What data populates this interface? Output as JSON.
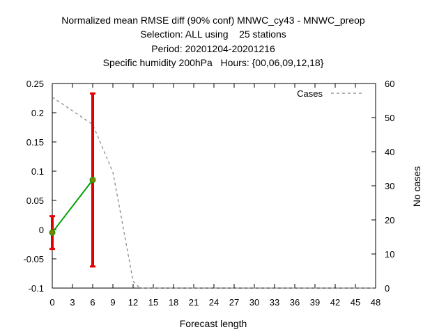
{
  "chart_data": {
    "type": "line",
    "title_lines": [
      "Normalized mean RMSE diff (90% conf) MNWC_cy43 - MNWC_preop",
      "Selection: ALL using    25 stations",
      "Period: 20201204-20201216",
      "Specific humidity 200hPa   Hours: {00,06,09,12,18}"
    ],
    "xlabel": "Forecast length",
    "ylabel": "",
    "y2label": "No cases",
    "xlim": [
      0,
      48
    ],
    "ylim": [
      -0.1,
      0.25
    ],
    "y2lim": [
      0,
      60
    ],
    "x_ticks": [
      0,
      3,
      6,
      9,
      12,
      15,
      18,
      21,
      24,
      27,
      30,
      33,
      36,
      39,
      42,
      45,
      48
    ],
    "y_ticks": [
      "-0.1",
      "-0.05",
      "0",
      "0.05",
      "0.1",
      "0.15",
      "0.2",
      "0.25"
    ],
    "y2_ticks": [
      0,
      10,
      20,
      30,
      40,
      50,
      60
    ],
    "grid": false,
    "legend_position": "top-right",
    "series": [
      {
        "axis": "y",
        "color": "#00a000",
        "points": [
          {
            "x": 0,
            "y": -0.005,
            "low": -0.033,
            "high": 0.023
          },
          {
            "x": 6,
            "y": 0.085,
            "low": -0.063,
            "high": 0.233
          }
        ]
      },
      {
        "name": "Cases",
        "axis": "y2",
        "style": "dashed",
        "color": "#808080",
        "x": [
          0,
          3,
          6,
          9,
          12,
          13,
          48
        ],
        "values": [
          56,
          52,
          48,
          34,
          2,
          0,
          0
        ]
      }
    ],
    "errorbar_color": "#e00000"
  }
}
